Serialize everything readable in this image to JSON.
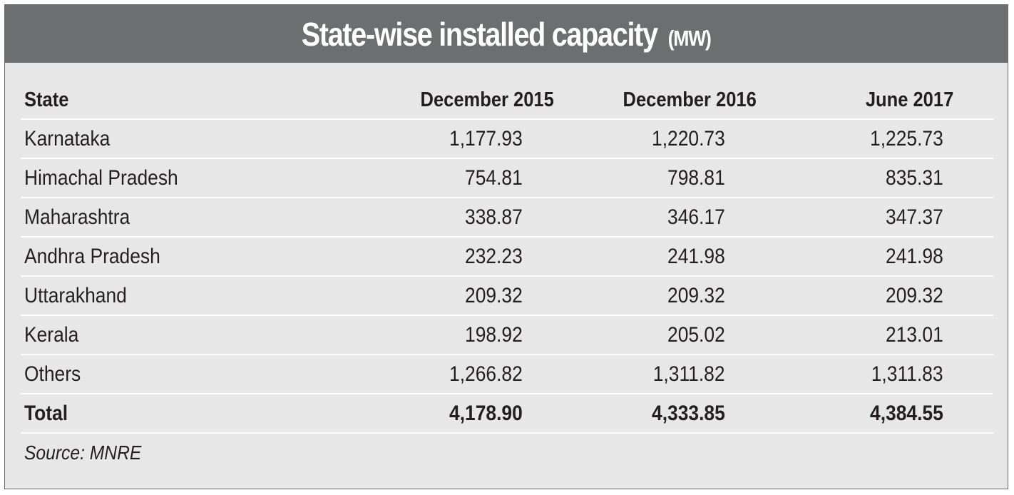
{
  "title": {
    "main": "State-wise installed capacity",
    "unit": "(MW)"
  },
  "source": "Source: MNRE",
  "chart_data": {
    "type": "table",
    "title": "State-wise installed capacity (MW)",
    "columns": [
      "State",
      "December 2015",
      "December 2016",
      "June 2017"
    ],
    "rows": [
      {
        "state": "Karnataka",
        "values": [
          "1,177.93",
          "1,220.73",
          "1,225.73"
        ]
      },
      {
        "state": "Himachal Pradesh",
        "values": [
          "754.81",
          "798.81",
          "835.31"
        ]
      },
      {
        "state": "Maharashtra",
        "values": [
          "338.87",
          "346.17",
          "347.37"
        ]
      },
      {
        "state": "Andhra Pradesh",
        "values": [
          "232.23",
          "241.98",
          "241.98"
        ]
      },
      {
        "state": "Uttarakhand",
        "values": [
          "209.32",
          "209.32",
          "209.32"
        ]
      },
      {
        "state": "Kerala",
        "values": [
          "198.92",
          "205.02",
          "213.01"
        ]
      },
      {
        "state": "Others",
        "values": [
          "1,266.82",
          "1,311.82",
          "1,311.83"
        ]
      },
      {
        "state": "Total",
        "values": [
          "4,178.90",
          "4,333.85",
          "4,384.55"
        ],
        "bold": true
      }
    ]
  }
}
